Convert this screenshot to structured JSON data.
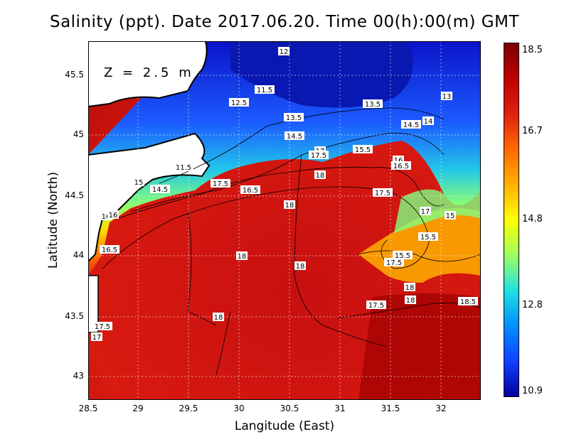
{
  "title": "Salinity (ppt). Date 2017.06.20. Time 00(h):00(m) GMT",
  "xlabel": "Langitude (East)",
  "ylabel": "Latitude (North)",
  "depth_label": "Z = 2.5 m",
  "x_ticks": [
    "28.5",
    "29",
    "29.5",
    "30",
    "30.5",
    "31",
    "31.5",
    "32"
  ],
  "y_ticks": [
    "45.5",
    "45",
    "44.5",
    "44",
    "43.5",
    "43"
  ],
  "colorbar": {
    "labels": [
      "18.5",
      "16.7",
      "14.8",
      "12.8",
      "10.9"
    ],
    "colors": [
      "#7a0000",
      "#c00000",
      "#e02010",
      "#ff6a00",
      "#ffb000",
      "#ffff00",
      "#a0ff60",
      "#20e0e0",
      "#0090ff",
      "#1040ff",
      "#0000a0"
    ]
  },
  "contour_labels": [
    "12",
    "11.5",
    "12.5",
    "13.5",
    "13",
    "13.5",
    "14",
    "14.5",
    "14.5",
    "15.5",
    "16",
    "17",
    "17.5",
    "16.5",
    "11.5",
    "15",
    "14.5",
    "17.5",
    "16.5",
    "18",
    "18",
    "17.5",
    "17",
    "15",
    "15.5",
    "16",
    "17.5",
    "18",
    "18",
    "18",
    "17.5",
    "17",
    "18",
    "18.5",
    "15.5",
    "16",
    "16.5",
    "17.5",
    "18"
  ],
  "chart_data": {
    "type": "heatmap",
    "title": "Salinity (ppt). Date 2017.06.20. Time 00(h):00(m) GMT",
    "xlabel": "Langitude (East)",
    "ylabel": "Latitude (North)",
    "xlim": [
      28.5,
      32.4
    ],
    "ylim": [
      42.8,
      45.8
    ],
    "color_range": [
      10.9,
      18.5
    ],
    "variable": "Salinity (ppt)",
    "depth": "Z = 2.5 m"
  }
}
